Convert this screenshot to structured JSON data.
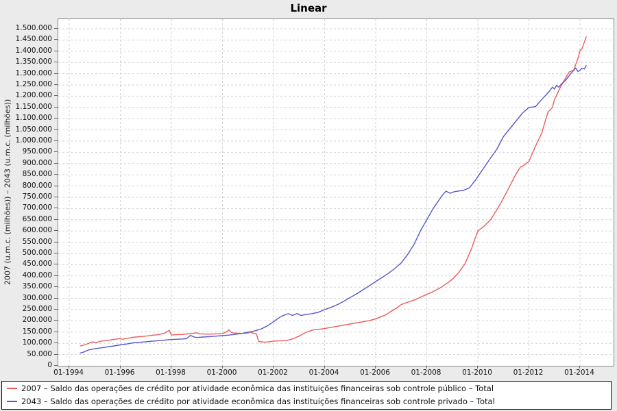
{
  "chart_data": {
    "type": "line",
    "title": "Linear",
    "ylabel": "2007 (u.m.c. (milhões)) – 2043 (u.m.c. (milhões))",
    "legend_position": "bottom",
    "grid": true,
    "x_axis": {
      "tick_labels": [
        "01-1994",
        "01-1996",
        "01-1998",
        "01-2000",
        "01-2002",
        "01-2004",
        "01-2006",
        "01-2008",
        "01-2010",
        "01-2012",
        "01-2014"
      ],
      "tick_years": [
        1994,
        1996,
        1998,
        2000,
        2002,
        2004,
        2006,
        2008,
        2010,
        2012,
        2014
      ]
    },
    "y_axis": {
      "min": 0,
      "max": 1500000,
      "grid_step": 50000,
      "tick_values": [
        0,
        50000,
        100000,
        150000,
        200000,
        250000,
        300000,
        350000,
        400000,
        450000,
        500000,
        550000,
        600000,
        650000,
        700000,
        750000,
        800000,
        850000,
        900000,
        950000,
        1000000,
        1050000,
        1100000,
        1150000,
        1200000,
        1250000,
        1300000,
        1350000,
        1400000,
        1450000,
        1500000
      ],
      "tick_labels": [
        "0",
        "50.000",
        "100.000",
        "150.000",
        "200.000",
        "250.000",
        "300.000",
        "350.000",
        "400.000",
        "450.000",
        "500.000",
        "550.000",
        "600.000",
        "650.000",
        "700.000",
        "750.000",
        "800.000",
        "850.000",
        "900.000",
        "950.000",
        "1.000.000",
        "1.050.000",
        "1.100.000",
        "1.150.000",
        "1.200.000",
        "1.250.000",
        "1.300.000",
        "1.350.000",
        "1.400.000",
        "1.450.000",
        "1.500.000"
      ]
    },
    "series": [
      {
        "id": "2007",
        "name": "2007 – Saldo das operações de crédito por atividade econômica das instituições financeiras sob controle público – Total",
        "color": "#ee5a5a",
        "points": [
          [
            1994.42,
            88000
          ],
          [
            1994.5,
            90000
          ],
          [
            1994.58,
            93000
          ],
          [
            1994.67,
            96000
          ],
          [
            1994.75,
            99000
          ],
          [
            1994.83,
            103000
          ],
          [
            1994.92,
            107000
          ],
          [
            1995.0,
            103000
          ],
          [
            1995.08,
            105000
          ],
          [
            1995.17,
            107000
          ],
          [
            1995.25,
            110000
          ],
          [
            1995.42,
            112000
          ],
          [
            1995.5,
            113000
          ],
          [
            1995.67,
            116000
          ],
          [
            1995.83,
            118500
          ],
          [
            1996.0,
            121000
          ],
          [
            1996.08,
            118000
          ],
          [
            1996.25,
            122000
          ],
          [
            1996.5,
            127000
          ],
          [
            1996.75,
            129500
          ],
          [
            1997.0,
            132000
          ],
          [
            1997.25,
            136000
          ],
          [
            1997.5,
            139000
          ],
          [
            1997.75,
            146000
          ],
          [
            1997.92,
            158000
          ],
          [
            1998.0,
            137000
          ],
          [
            1998.17,
            138500
          ],
          [
            1998.33,
            139000
          ],
          [
            1998.5,
            140000
          ],
          [
            1998.75,
            143000
          ],
          [
            1999.0,
            147000
          ],
          [
            1999.08,
            142000
          ],
          [
            1999.25,
            141500
          ],
          [
            1999.5,
            141000
          ],
          [
            1999.75,
            142000
          ],
          [
            2000.0,
            143000
          ],
          [
            2000.17,
            152000
          ],
          [
            2000.25,
            160000
          ],
          [
            2000.33,
            150000
          ],
          [
            2000.42,
            146000
          ],
          [
            2000.58,
            145000
          ],
          [
            2000.75,
            144000
          ],
          [
            2001.0,
            146000
          ],
          [
            2001.08,
            150000
          ],
          [
            2001.17,
            146000
          ],
          [
            2001.33,
            142000
          ],
          [
            2001.42,
            108000
          ],
          [
            2001.58,
            106000
          ],
          [
            2001.67,
            105000
          ],
          [
            2001.83,
            107000
          ],
          [
            2002.0,
            110000
          ],
          [
            2002.25,
            111000
          ],
          [
            2002.5,
            112000
          ],
          [
            2002.75,
            120000
          ],
          [
            2003.0,
            132000
          ],
          [
            2003.25,
            148000
          ],
          [
            2003.58,
            161000
          ],
          [
            2003.83,
            163000
          ],
          [
            2004.0,
            166000
          ],
          [
            2004.25,
            171000
          ],
          [
            2004.5,
            176000
          ],
          [
            2004.75,
            181000
          ],
          [
            2005.0,
            186000
          ],
          [
            2005.5,
            196000
          ],
          [
            2005.75,
            201000
          ],
          [
            2006.0,
            209000
          ],
          [
            2006.25,
            220000
          ],
          [
            2006.42,
            228000
          ],
          [
            2006.58,
            241000
          ],
          [
            2006.83,
            258000
          ],
          [
            2007.0,
            273000
          ],
          [
            2007.25,
            283000
          ],
          [
            2007.5,
            292000
          ],
          [
            2007.75,
            305000
          ],
          [
            2008.0,
            318000
          ],
          [
            2008.25,
            330000
          ],
          [
            2008.5,
            345000
          ],
          [
            2008.83,
            370000
          ],
          [
            2009.0,
            385000
          ],
          [
            2009.25,
            415000
          ],
          [
            2009.5,
            455000
          ],
          [
            2009.75,
            520000
          ],
          [
            2009.92,
            575000
          ],
          [
            2010.0,
            600000
          ],
          [
            2010.25,
            622000
          ],
          [
            2010.5,
            650000
          ],
          [
            2010.75,
            695000
          ],
          [
            2011.0,
            745000
          ],
          [
            2011.25,
            800000
          ],
          [
            2011.5,
            855000
          ],
          [
            2011.67,
            885000
          ],
          [
            2011.75,
            888000
          ],
          [
            2012.0,
            910000
          ],
          [
            2012.25,
            975000
          ],
          [
            2012.5,
            1035000
          ],
          [
            2012.75,
            1130000
          ],
          [
            2012.92,
            1150000
          ],
          [
            2013.0,
            1185000
          ],
          [
            2013.17,
            1225000
          ],
          [
            2013.33,
            1260000
          ],
          [
            2013.58,
            1308000
          ],
          [
            2013.75,
            1315000
          ],
          [
            2013.92,
            1368000
          ],
          [
            2014.0,
            1402000
          ],
          [
            2014.08,
            1412000
          ],
          [
            2014.17,
            1440000
          ],
          [
            2014.25,
            1466000
          ]
        ]
      },
      {
        "id": "2043",
        "name": "2043 – Saldo das operações de crédito por atividade econômica das instituições financeiras sob controle privado – Total",
        "color": "#5555d2",
        "points": [
          [
            1994.42,
            57000
          ],
          [
            1994.5,
            58000
          ],
          [
            1994.58,
            62000
          ],
          [
            1994.75,
            70000
          ],
          [
            1994.92,
            74000
          ],
          [
            1995.0,
            76000
          ],
          [
            1995.25,
            80000
          ],
          [
            1995.5,
            84000
          ],
          [
            1995.75,
            88500
          ],
          [
            1996.0,
            93000
          ],
          [
            1996.25,
            97000
          ],
          [
            1996.5,
            102000
          ],
          [
            1996.75,
            104500
          ],
          [
            1997.0,
            107000
          ],
          [
            1997.25,
            109500
          ],
          [
            1997.5,
            112000
          ],
          [
            1997.75,
            114500
          ],
          [
            1998.0,
            117000
          ],
          [
            1998.33,
            118500
          ],
          [
            1998.58,
            120000
          ],
          [
            1998.75,
            135000
          ],
          [
            1998.83,
            131000
          ],
          [
            1998.92,
            127000
          ],
          [
            1999.0,
            126000
          ],
          [
            1999.25,
            128000
          ],
          [
            1999.5,
            130000
          ],
          [
            1999.75,
            132000
          ],
          [
            2000.0,
            134000
          ],
          [
            2000.25,
            136500
          ],
          [
            2000.5,
            140000
          ],
          [
            2000.75,
            144000
          ],
          [
            2001.0,
            149000
          ],
          [
            2001.25,
            155000
          ],
          [
            2001.5,
            163000
          ],
          [
            2001.75,
            177000
          ],
          [
            2002.0,
            196000
          ],
          [
            2002.17,
            210000
          ],
          [
            2002.33,
            222000
          ],
          [
            2002.58,
            232000
          ],
          [
            2002.75,
            224000
          ],
          [
            2002.92,
            233000
          ],
          [
            2003.08,
            224000
          ],
          [
            2003.25,
            228000
          ],
          [
            2003.5,
            232000
          ],
          [
            2003.75,
            238000
          ],
          [
            2004.0,
            250000
          ],
          [
            2004.25,
            260000
          ],
          [
            2004.5,
            272000
          ],
          [
            2004.75,
            287000
          ],
          [
            2005.0,
            304000
          ],
          [
            2005.25,
            320000
          ],
          [
            2005.5,
            338000
          ],
          [
            2005.75,
            356000
          ],
          [
            2006.0,
            375000
          ],
          [
            2006.25,
            393000
          ],
          [
            2006.5,
            412000
          ],
          [
            2006.75,
            433000
          ],
          [
            2007.0,
            458000
          ],
          [
            2007.25,
            495000
          ],
          [
            2007.5,
            540000
          ],
          [
            2007.75,
            600000
          ],
          [
            2008.0,
            650000
          ],
          [
            2008.25,
            700000
          ],
          [
            2008.58,
            755000
          ],
          [
            2008.75,
            777000
          ],
          [
            2008.92,
            768000
          ],
          [
            2009.08,
            775000
          ],
          [
            2009.25,
            778000
          ],
          [
            2009.42,
            780000
          ],
          [
            2009.67,
            792000
          ],
          [
            2009.92,
            828000
          ],
          [
            2010.17,
            870000
          ],
          [
            2010.5,
            925000
          ],
          [
            2010.75,
            965000
          ],
          [
            2011.0,
            1020000
          ],
          [
            2011.25,
            1055000
          ],
          [
            2011.5,
            1090000
          ],
          [
            2011.75,
            1125000
          ],
          [
            2012.0,
            1150000
          ],
          [
            2012.25,
            1153000
          ],
          [
            2012.5,
            1185000
          ],
          [
            2012.75,
            1215000
          ],
          [
            2012.92,
            1240000
          ],
          [
            2013.0,
            1232000
          ],
          [
            2013.08,
            1248000
          ],
          [
            2013.17,
            1240000
          ],
          [
            2013.25,
            1252000
          ],
          [
            2013.42,
            1268000
          ],
          [
            2013.58,
            1292000
          ],
          [
            2013.75,
            1315000
          ],
          [
            2013.83,
            1325000
          ],
          [
            2013.92,
            1310000
          ],
          [
            2014.0,
            1315000
          ],
          [
            2014.08,
            1325000
          ],
          [
            2014.17,
            1321000
          ],
          [
            2014.25,
            1338000
          ]
        ]
      }
    ],
    "colors": {
      "background": "#ebebeb",
      "plot_background": "#ffffff",
      "gridline": "#d2d2d2",
      "plot_border": "#848484",
      "legend_border": "#000000",
      "series_2007": "#ee5a5a",
      "series_2043": "#5555d2"
    }
  }
}
